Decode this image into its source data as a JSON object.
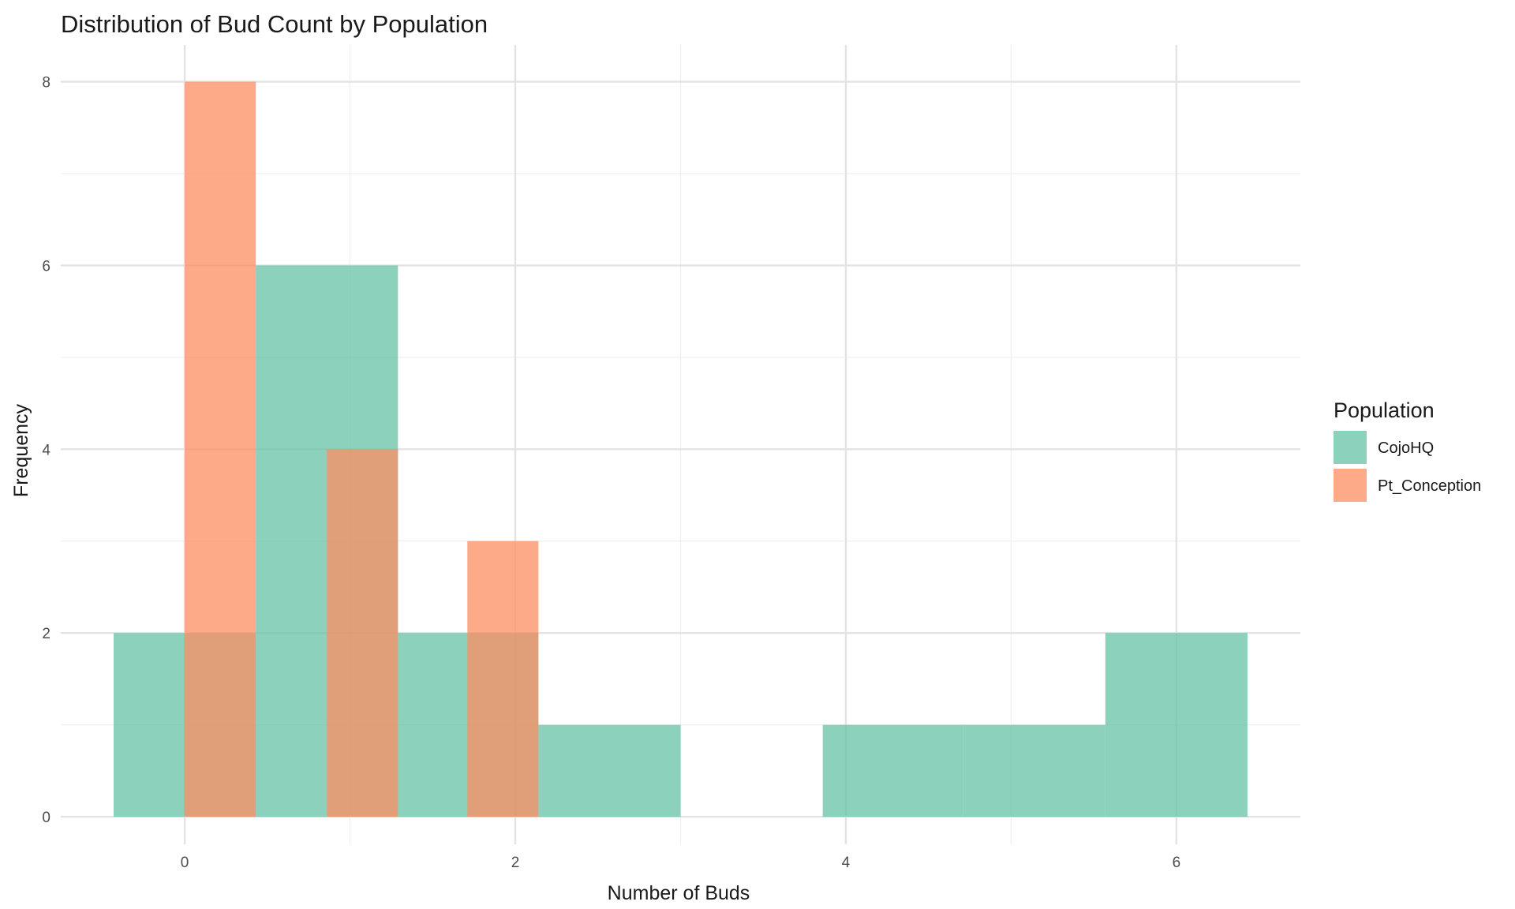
{
  "chart_data": {
    "type": "bar",
    "title": "Distribution of Bud Count by Population",
    "xlabel": "Number of Buds",
    "ylabel": "Frequency",
    "xlim": [
      -0.75,
      6.75
    ],
    "ylim": [
      -0.3,
      8.4
    ],
    "x_ticks": [
      0,
      2,
      4,
      6
    ],
    "y_ticks": [
      0,
      2,
      4,
      6,
      8
    ],
    "grid": true,
    "legend_title": "Population",
    "legend_position": "right",
    "bin_width": 0.857,
    "series": [
      {
        "name": "CojoHQ",
        "color": "#66C2A5",
        "bins": [
          {
            "x0": -0.43,
            "x1": 0.43,
            "count": 2
          },
          {
            "x0": 0.43,
            "x1": 1.29,
            "count": 6
          },
          {
            "x0": 1.29,
            "x1": 2.14,
            "count": 2
          },
          {
            "x0": 2.14,
            "x1": 3.0,
            "count": 1
          },
          {
            "x0": 3.86,
            "x1": 4.71,
            "count": 1
          },
          {
            "x0": 4.71,
            "x1": 5.57,
            "count": 1
          },
          {
            "x0": 5.57,
            "x1": 6.43,
            "count": 2
          }
        ]
      },
      {
        "name": "Pt_Conception",
        "color": "#FC8D62",
        "bins": [
          {
            "x0": 0.0,
            "x1": 0.43,
            "count": 8
          },
          {
            "x0": 0.86,
            "x1": 1.29,
            "count": 4
          },
          {
            "x0": 1.71,
            "x1": 2.14,
            "count": 3
          }
        ]
      }
    ]
  }
}
